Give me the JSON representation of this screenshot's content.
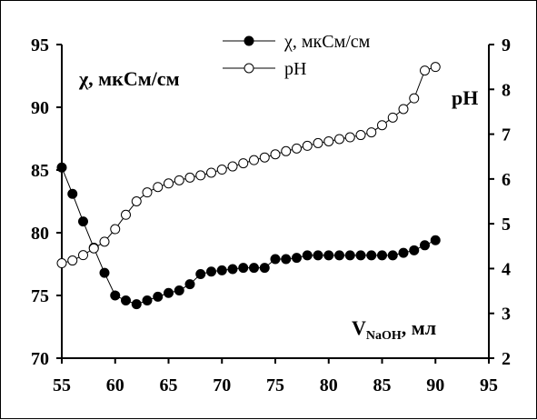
{
  "chart_data": {
    "type": "scatter",
    "x_axis": {
      "min": 55,
      "max": 95,
      "ticks": [
        55,
        60,
        65,
        70,
        75,
        80,
        85,
        90,
        95
      ],
      "label": "VNaOH, мл",
      "label_main": "V",
      "label_sub": "NaOH",
      "label_suffix": ", мл"
    },
    "y_left": {
      "min": 70,
      "max": 95,
      "ticks": [
        70,
        75,
        80,
        85,
        90,
        95
      ],
      "label": "χ, мкСм/см"
    },
    "y_right": {
      "min": 2,
      "max": 9,
      "ticks": [
        2,
        3,
        4,
        5,
        6,
        7,
        8,
        9
      ],
      "label": "pH"
    },
    "legend_position": "top-center",
    "grid": false,
    "series": [
      {
        "name": "χ, мкСм/см",
        "axis": "left",
        "marker": "filled-circle",
        "x": [
          55,
          56,
          57,
          58,
          59,
          60,
          61,
          62,
          63,
          64,
          65,
          66,
          67,
          68,
          69,
          70,
          71,
          72,
          73,
          74,
          75,
          76,
          77,
          78,
          79,
          80,
          81,
          82,
          83,
          84,
          85,
          86,
          87,
          88,
          89,
          90
        ],
        "y": [
          85.2,
          83.1,
          80.9,
          78.8,
          76.8,
          75.0,
          74.6,
          74.3,
          74.6,
          74.9,
          75.2,
          75.4,
          75.9,
          76.7,
          76.9,
          77.0,
          77.1,
          77.2,
          77.2,
          77.2,
          77.9,
          77.9,
          78.0,
          78.2,
          78.2,
          78.2,
          78.2,
          78.2,
          78.2,
          78.2,
          78.2,
          78.2,
          78.4,
          78.6,
          79.0,
          79.4
        ]
      },
      {
        "name": "pH",
        "axis": "right",
        "marker": "open-circle",
        "x": [
          55,
          56,
          57,
          58,
          59,
          60,
          61,
          62,
          63,
          64,
          65,
          66,
          67,
          68,
          69,
          70,
          71,
          72,
          73,
          74,
          75,
          76,
          77,
          78,
          79,
          80,
          81,
          82,
          83,
          84,
          85,
          86,
          87,
          88,
          89,
          90
        ],
        "y": [
          4.12,
          4.18,
          4.3,
          4.45,
          4.6,
          4.88,
          5.2,
          5.5,
          5.7,
          5.82,
          5.9,
          5.97,
          6.03,
          6.08,
          6.14,
          6.21,
          6.28,
          6.35,
          6.42,
          6.48,
          6.55,
          6.62,
          6.68,
          6.74,
          6.8,
          6.84,
          6.89,
          6.93,
          6.98,
          7.04,
          7.2,
          7.37,
          7.56,
          7.8,
          8.42,
          8.5
        ]
      }
    ]
  }
}
